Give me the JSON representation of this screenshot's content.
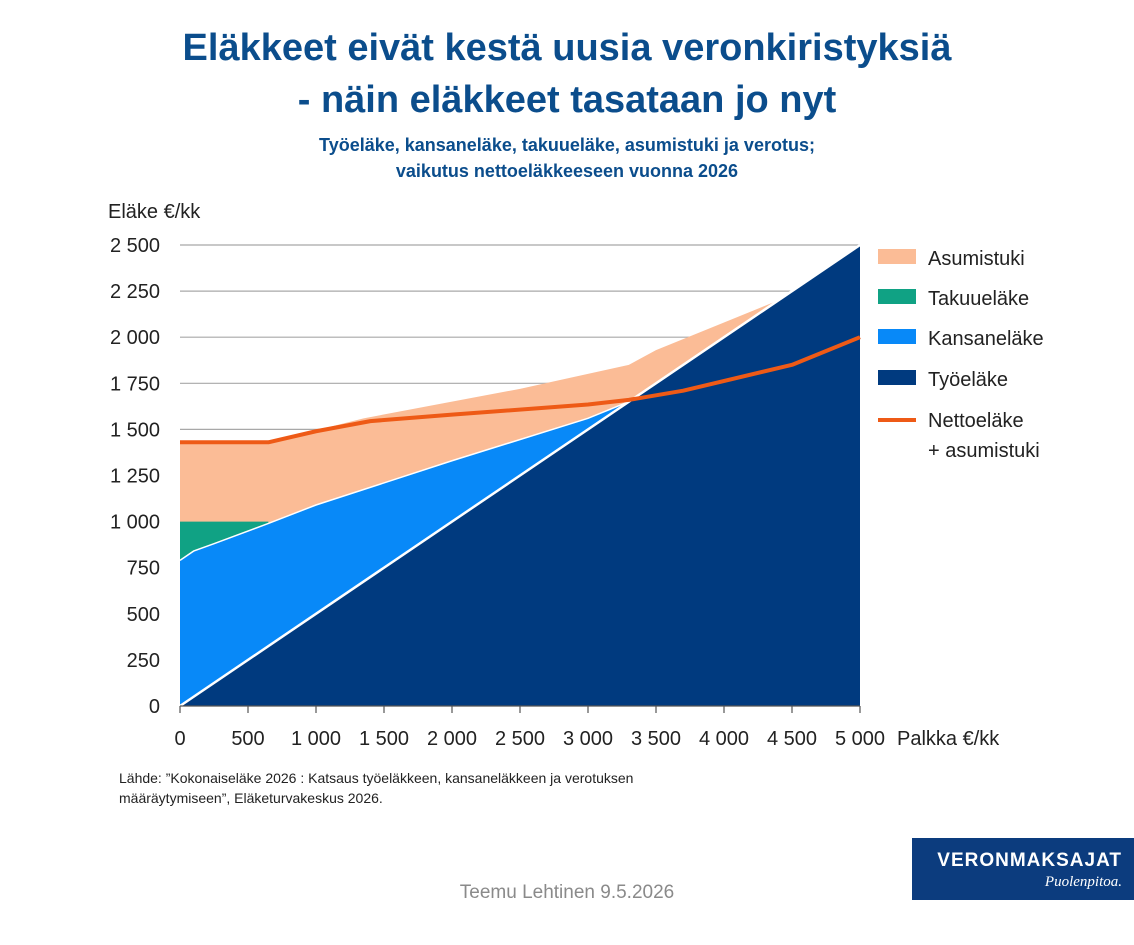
{
  "header": {
    "title_line1": "Eläkkeet eivät kestä uusia veronkiristyksiä",
    "title_line2": "- näin eläkkeet tasataan jo nyt",
    "subtitle_line1": "Työeläke, kansaneläke, takuueläke, asumistuki ja verotus;",
    "subtitle_line2": "vaikutus nettoeläkkeeseen vuonna 2026"
  },
  "chart_data": {
    "type": "area",
    "ylabel": "Eläke €/kk",
    "xlabel": "Palkka €/kk",
    "xlim": [
      0,
      5000
    ],
    "ylim": [
      0,
      2500
    ],
    "x_ticks": [
      0,
      500,
      1000,
      1500,
      2000,
      2500,
      3000,
      3500,
      4000,
      4500,
      5000
    ],
    "x_tick_labels": [
      "0",
      "500",
      "1 000",
      "1 500",
      "2 000",
      "2 500",
      "3 000",
      "3 500",
      "4 000",
      "4 500",
      "5 000"
    ],
    "y_ticks": [
      0,
      250,
      500,
      750,
      1000,
      1250,
      1500,
      1750,
      2000,
      2250,
      2500
    ],
    "y_tick_labels": [
      "0",
      "250",
      "500",
      "750",
      "1 000",
      "1 250",
      "1 500",
      "1 750",
      "2 000",
      "2 250",
      "2 500"
    ],
    "grid": "horizontal",
    "legend_position": "right",
    "series": [
      {
        "name": "Asumistuki",
        "color": "#fbbc96",
        "kind": "area",
        "x": [
          0,
          650,
          1350,
          2500,
          3300,
          3500,
          4000,
          4400,
          4600,
          5000
        ],
        "y": [
          1430,
          1430,
          1560,
          1720,
          1850,
          1930,
          2080,
          2200,
          2290,
          2500
        ]
      },
      {
        "name": "Takuueläke",
        "color": "#10a284",
        "kind": "area",
        "x": [
          0,
          650
        ],
        "y": [
          1000,
          1000
        ]
      },
      {
        "name": "Kansaneläke",
        "color": "#0889f8",
        "kind": "area",
        "x": [
          0,
          100,
          250,
          650,
          1000,
          2000,
          3000,
          3300,
          5000
        ],
        "y": [
          790,
          840,
          880,
          990,
          1090,
          1330,
          1560,
          1650,
          2500
        ]
      },
      {
        "name": "Työeläke",
        "color": "#003a7f",
        "kind": "area",
        "x": [
          0,
          5000
        ],
        "y": [
          0,
          2500
        ]
      },
      {
        "name": "Nettoeläke + asumistuki",
        "color": "#ee5a16",
        "kind": "line",
        "x": [
          0,
          650,
          1000,
          1400,
          2000,
          3000,
          3300,
          3700,
          4500,
          5000
        ],
        "y": [
          1430,
          1430,
          1490,
          1545,
          1580,
          1635,
          1660,
          1710,
          1850,
          2000
        ]
      }
    ],
    "legend": [
      {
        "label": "Asumistuki",
        "color": "#fbbc96",
        "kind": "box"
      },
      {
        "label": "Takuueläke",
        "color": "#10a284",
        "kind": "box"
      },
      {
        "label": "Kansaneläke",
        "color": "#0889f8",
        "kind": "box"
      },
      {
        "label": "Työeläke",
        "color": "#003a7f",
        "kind": "box"
      },
      {
        "label_lines": [
          "Nettoeläke",
          "+ asumistuki"
        ],
        "color": "#ee5a16",
        "kind": "line"
      }
    ]
  },
  "source": "Lähde: ”Kokonaiseläke 2026 : Katsaus työeläkkeen, kansaneläkkeen ja verotuksen määräytymiseen”, Eläketurvakeskus 2026.",
  "author": "Teemu Lehtinen  9.5.2026",
  "logo": {
    "name": "VERONMAKSAJAT",
    "slogan": "Puolenpitoa."
  }
}
